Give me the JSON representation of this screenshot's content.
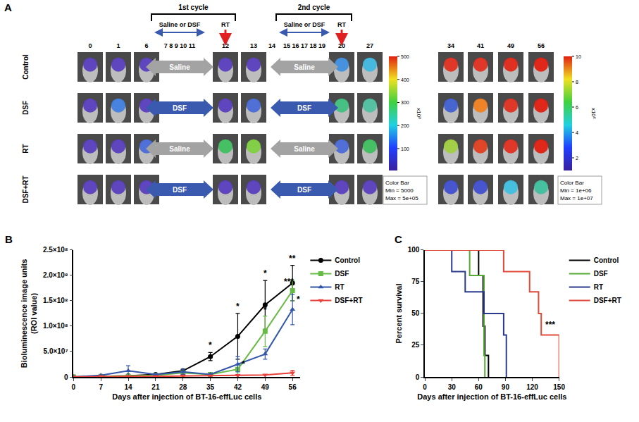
{
  "diagram": {
    "panel_label": "A",
    "columns": [
      "0",
      "1",
      "6",
      "7 8 9 10 11",
      "12",
      "13",
      "14",
      "15 16 17 18 19",
      "20",
      "27",
      "34",
      "41",
      "49",
      "56"
    ],
    "cycles": [
      {
        "title": "1st cycle",
        "label": "Saline or DSF",
        "rt": "RT"
      },
      {
        "title": "2nd cycle",
        "label": "Saline or DSF",
        "rt": "RT"
      }
    ],
    "rows": [
      {
        "label": "Control",
        "treatment": "Saline",
        "arrow_color": "#a3a3a3",
        "signal_colors": [
          "#5a3fbf",
          "#5a3fbf",
          "#5a3fbf",
          "#5a3fbf",
          "#5a3fbf",
          "#3f8fe0",
          "#40b8e0",
          "#e03020",
          "#e03020",
          "#e02818",
          "#e02010"
        ]
      },
      {
        "label": "DSF",
        "treatment": "DSF",
        "arrow_color": "#3a5ab0",
        "signal_colors": [
          "#5a3fbf",
          "#4080e0",
          "#5a3fbf",
          "#5a3fbf",
          "#4a6ad8",
          "#40c080",
          "#50c0a0",
          "#4060d0",
          "#f08020",
          "#e03020",
          "#e02010"
        ]
      },
      {
        "label": "RT",
        "treatment": "Saline",
        "arrow_color": "#a3a3a3",
        "signal_colors": [
          "#5a3fbf",
          "#5a3fbf",
          "#4a6ad8",
          "#40c060",
          "#80d040",
          "#4a6ad8",
          "#40c060",
          "#a0d040",
          "#e04020",
          "#e03020",
          "#e02010"
        ]
      },
      {
        "label": "DSF+RT",
        "treatment": "DSF",
        "arrow_color": "#3a5ab0",
        "signal_colors": [
          "#5a3fbf",
          "#5a3fbf",
          "#5a3fbf",
          "#5a3fbf",
          "#5a3fbf",
          "#5a3fbf",
          "#5a3fbf",
          "#4050d0",
          "#4050d0",
          "#40c0e0",
          "#40c0a0"
        ]
      }
    ],
    "colorbars": [
      {
        "unit": "x10³",
        "range": [
          5,
          500
        ],
        "ticks": [
          100,
          200,
          300,
          400,
          500
        ],
        "caption": [
          "Color Bar",
          "Min = 5000",
          "Max = 5e+05"
        ]
      },
      {
        "unit": "x10⁶",
        "range": [
          1,
          10
        ],
        "ticks": [
          2,
          4,
          6,
          8,
          10
        ],
        "caption": [
          "Color Bar",
          "Min = 1e+06",
          "Max = 1e+07"
        ]
      }
    ]
  },
  "chart_data": [
    {
      "panel_label": "B",
      "type": "line",
      "x_title": "Days after injection of BT-16-effLuc cells",
      "y_title": [
        "Bioluminescence image units",
        "(ROI value)"
      ],
      "x": [
        0,
        7,
        14,
        21,
        28,
        35,
        42,
        49,
        56
      ],
      "xlim": [
        0,
        58
      ],
      "xticks": [
        0,
        7,
        14,
        21,
        28,
        35,
        42,
        49,
        56
      ],
      "ylim": [
        0,
        250000000
      ],
      "yticks": [
        0,
        {
          "value": 50000000,
          "label": "5.0×10⁷"
        },
        {
          "value": 100000000,
          "label": "1.0×10⁸"
        },
        {
          "value": 150000000,
          "label": "1.5×10⁸"
        },
        {
          "value": 200000000,
          "label": "2.0×10⁸"
        },
        {
          "value": 250000000,
          "label": "2.5×10⁸"
        }
      ],
      "legend": "right",
      "series": [
        {
          "name": "Control",
          "color": "#000000",
          "marker": "circle",
          "values": [
            0,
            1000000,
            2000000,
            5000000,
            12000000,
            40000000,
            80000000,
            142000000,
            185000000
          ],
          "errors": [
            0,
            0,
            0,
            0,
            3000000,
            8000000,
            45000000,
            48000000,
            35000000
          ]
        },
        {
          "name": "DSF",
          "color": "#66bb44",
          "marker": "square",
          "values": [
            0,
            1000000,
            1000000,
            3000000,
            8000000,
            5000000,
            15000000,
            90000000,
            170000000
          ],
          "errors": [
            0,
            0,
            0,
            0,
            0,
            0,
            10000000,
            30000000,
            20000000
          ]
        },
        {
          "name": "RT",
          "color": "#3355aa",
          "marker": "triangle-up",
          "values": [
            0,
            3000000,
            12000000,
            5000000,
            10000000,
            5000000,
            25000000,
            45000000,
            133000000
          ],
          "errors": [
            0,
            0,
            10000000,
            0,
            5000000,
            0,
            15000000,
            10000000,
            30000000
          ]
        },
        {
          "name": "DSF+RT",
          "color": "#e8403a",
          "marker": "triangle-down",
          "values": [
            0,
            1000000,
            1000000,
            1000000,
            2000000,
            2000000,
            3000000,
            4000000,
            8000000
          ],
          "errors": [
            0,
            0,
            0,
            0,
            0,
            0,
            0,
            0,
            5000000
          ]
        }
      ],
      "annotations": [
        {
          "x": 35,
          "y": 50000000,
          "text": "*"
        },
        {
          "x": 42,
          "y": 127000000,
          "text": "*"
        },
        {
          "x": 49,
          "y": 191000000,
          "text": "*"
        },
        {
          "x": 49,
          "y": 120000000,
          "text": "*"
        },
        {
          "x": 43.5,
          "y": 12000000,
          "text": "*"
        },
        {
          "x": 56,
          "y": 221000000,
          "text": "**"
        },
        {
          "x": 55,
          "y": 175000000,
          "text": "***"
        },
        {
          "x": 57.5,
          "y": 140000000,
          "text": "*"
        }
      ]
    },
    {
      "panel_label": "C",
      "type": "line",
      "line_style": "step",
      "x_title": "Days after injection of BT-16-effLuc cells",
      "y_title": [
        "Percent survival"
      ],
      "xlim": [
        0,
        150
      ],
      "xticks": [
        0,
        30,
        60,
        90,
        120,
        150
      ],
      "ylim": [
        0,
        100
      ],
      "yticks": [
        0,
        25,
        50,
        75,
        100
      ],
      "legend": "right",
      "series": [
        {
          "name": "Control",
          "color": "#000000",
          "x": [
            0,
            60,
            65,
            67,
            71
          ],
          "values": [
            100,
            80,
            40,
            17,
            0
          ]
        },
        {
          "name": "DSF",
          "color": "#55aa33",
          "x": [
            0,
            50,
            66,
            67
          ],
          "values": [
            100,
            80,
            17,
            0
          ]
        },
        {
          "name": "RT",
          "color": "#2b3a8c",
          "x": [
            0,
            30,
            45,
            66,
            88,
            91
          ],
          "values": [
            100,
            83,
            67,
            50,
            33,
            0
          ]
        },
        {
          "name": "DSF+RT",
          "color": "#e04a3a",
          "x": [
            0,
            88,
            117,
            127,
            130,
            150
          ],
          "values": [
            100,
            83,
            67,
            50,
            33,
            0
          ]
        }
      ],
      "annotations": [
        {
          "x": 140,
          "y": 36,
          "text": "***"
        }
      ]
    }
  ]
}
